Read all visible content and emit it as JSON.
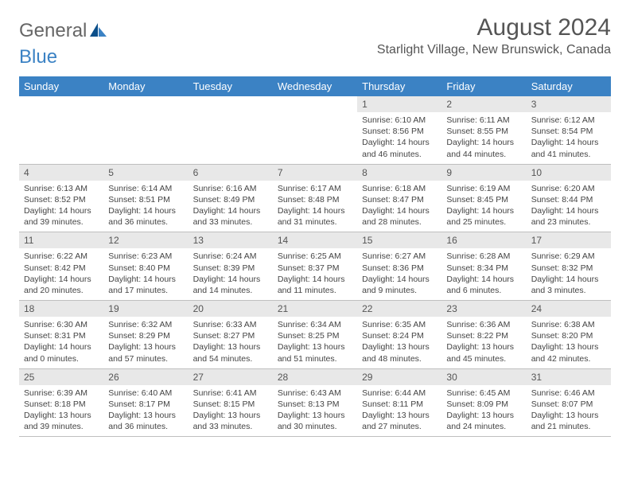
{
  "logo": {
    "text_a": "General",
    "text_b": "Blue"
  },
  "title": "August 2024",
  "location": "Starlight Village, New Brunswick, Canada",
  "colors": {
    "header_bg": "#3b82c4",
    "header_text": "#ffffff",
    "daynum_bg": "#e8e8e8",
    "border": "#bfbfbf",
    "logo_gray": "#666666",
    "logo_blue": "#3b82c4"
  },
  "columns": [
    "Sunday",
    "Monday",
    "Tuesday",
    "Wednesday",
    "Thursday",
    "Friday",
    "Saturday"
  ],
  "weeks": [
    [
      {
        "day": "",
        "sunrise": "",
        "sunset": "",
        "daylight": ""
      },
      {
        "day": "",
        "sunrise": "",
        "sunset": "",
        "daylight": ""
      },
      {
        "day": "",
        "sunrise": "",
        "sunset": "",
        "daylight": ""
      },
      {
        "day": "",
        "sunrise": "",
        "sunset": "",
        "daylight": ""
      },
      {
        "day": "1",
        "sunrise": "Sunrise: 6:10 AM",
        "sunset": "Sunset: 8:56 PM",
        "daylight": "Daylight: 14 hours and 46 minutes."
      },
      {
        "day": "2",
        "sunrise": "Sunrise: 6:11 AM",
        "sunset": "Sunset: 8:55 PM",
        "daylight": "Daylight: 14 hours and 44 minutes."
      },
      {
        "day": "3",
        "sunrise": "Sunrise: 6:12 AM",
        "sunset": "Sunset: 8:54 PM",
        "daylight": "Daylight: 14 hours and 41 minutes."
      }
    ],
    [
      {
        "day": "4",
        "sunrise": "Sunrise: 6:13 AM",
        "sunset": "Sunset: 8:52 PM",
        "daylight": "Daylight: 14 hours and 39 minutes."
      },
      {
        "day": "5",
        "sunrise": "Sunrise: 6:14 AM",
        "sunset": "Sunset: 8:51 PM",
        "daylight": "Daylight: 14 hours and 36 minutes."
      },
      {
        "day": "6",
        "sunrise": "Sunrise: 6:16 AM",
        "sunset": "Sunset: 8:49 PM",
        "daylight": "Daylight: 14 hours and 33 minutes."
      },
      {
        "day": "7",
        "sunrise": "Sunrise: 6:17 AM",
        "sunset": "Sunset: 8:48 PM",
        "daylight": "Daylight: 14 hours and 31 minutes."
      },
      {
        "day": "8",
        "sunrise": "Sunrise: 6:18 AM",
        "sunset": "Sunset: 8:47 PM",
        "daylight": "Daylight: 14 hours and 28 minutes."
      },
      {
        "day": "9",
        "sunrise": "Sunrise: 6:19 AM",
        "sunset": "Sunset: 8:45 PM",
        "daylight": "Daylight: 14 hours and 25 minutes."
      },
      {
        "day": "10",
        "sunrise": "Sunrise: 6:20 AM",
        "sunset": "Sunset: 8:44 PM",
        "daylight": "Daylight: 14 hours and 23 minutes."
      }
    ],
    [
      {
        "day": "11",
        "sunrise": "Sunrise: 6:22 AM",
        "sunset": "Sunset: 8:42 PM",
        "daylight": "Daylight: 14 hours and 20 minutes."
      },
      {
        "day": "12",
        "sunrise": "Sunrise: 6:23 AM",
        "sunset": "Sunset: 8:40 PM",
        "daylight": "Daylight: 14 hours and 17 minutes."
      },
      {
        "day": "13",
        "sunrise": "Sunrise: 6:24 AM",
        "sunset": "Sunset: 8:39 PM",
        "daylight": "Daylight: 14 hours and 14 minutes."
      },
      {
        "day": "14",
        "sunrise": "Sunrise: 6:25 AM",
        "sunset": "Sunset: 8:37 PM",
        "daylight": "Daylight: 14 hours and 11 minutes."
      },
      {
        "day": "15",
        "sunrise": "Sunrise: 6:27 AM",
        "sunset": "Sunset: 8:36 PM",
        "daylight": "Daylight: 14 hours and 9 minutes."
      },
      {
        "day": "16",
        "sunrise": "Sunrise: 6:28 AM",
        "sunset": "Sunset: 8:34 PM",
        "daylight": "Daylight: 14 hours and 6 minutes."
      },
      {
        "day": "17",
        "sunrise": "Sunrise: 6:29 AM",
        "sunset": "Sunset: 8:32 PM",
        "daylight": "Daylight: 14 hours and 3 minutes."
      }
    ],
    [
      {
        "day": "18",
        "sunrise": "Sunrise: 6:30 AM",
        "sunset": "Sunset: 8:31 PM",
        "daylight": "Daylight: 14 hours and 0 minutes."
      },
      {
        "day": "19",
        "sunrise": "Sunrise: 6:32 AM",
        "sunset": "Sunset: 8:29 PM",
        "daylight": "Daylight: 13 hours and 57 minutes."
      },
      {
        "day": "20",
        "sunrise": "Sunrise: 6:33 AM",
        "sunset": "Sunset: 8:27 PM",
        "daylight": "Daylight: 13 hours and 54 minutes."
      },
      {
        "day": "21",
        "sunrise": "Sunrise: 6:34 AM",
        "sunset": "Sunset: 8:25 PM",
        "daylight": "Daylight: 13 hours and 51 minutes."
      },
      {
        "day": "22",
        "sunrise": "Sunrise: 6:35 AM",
        "sunset": "Sunset: 8:24 PM",
        "daylight": "Daylight: 13 hours and 48 minutes."
      },
      {
        "day": "23",
        "sunrise": "Sunrise: 6:36 AM",
        "sunset": "Sunset: 8:22 PM",
        "daylight": "Daylight: 13 hours and 45 minutes."
      },
      {
        "day": "24",
        "sunrise": "Sunrise: 6:38 AM",
        "sunset": "Sunset: 8:20 PM",
        "daylight": "Daylight: 13 hours and 42 minutes."
      }
    ],
    [
      {
        "day": "25",
        "sunrise": "Sunrise: 6:39 AM",
        "sunset": "Sunset: 8:18 PM",
        "daylight": "Daylight: 13 hours and 39 minutes."
      },
      {
        "day": "26",
        "sunrise": "Sunrise: 6:40 AM",
        "sunset": "Sunset: 8:17 PM",
        "daylight": "Daylight: 13 hours and 36 minutes."
      },
      {
        "day": "27",
        "sunrise": "Sunrise: 6:41 AM",
        "sunset": "Sunset: 8:15 PM",
        "daylight": "Daylight: 13 hours and 33 minutes."
      },
      {
        "day": "28",
        "sunrise": "Sunrise: 6:43 AM",
        "sunset": "Sunset: 8:13 PM",
        "daylight": "Daylight: 13 hours and 30 minutes."
      },
      {
        "day": "29",
        "sunrise": "Sunrise: 6:44 AM",
        "sunset": "Sunset: 8:11 PM",
        "daylight": "Daylight: 13 hours and 27 minutes."
      },
      {
        "day": "30",
        "sunrise": "Sunrise: 6:45 AM",
        "sunset": "Sunset: 8:09 PM",
        "daylight": "Daylight: 13 hours and 24 minutes."
      },
      {
        "day": "31",
        "sunrise": "Sunrise: 6:46 AM",
        "sunset": "Sunset: 8:07 PM",
        "daylight": "Daylight: 13 hours and 21 minutes."
      }
    ]
  ]
}
